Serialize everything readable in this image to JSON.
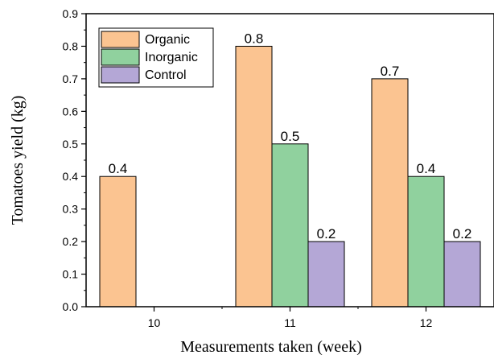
{
  "chart_data": {
    "type": "bar",
    "categories": [
      "10",
      "11",
      "12"
    ],
    "series": [
      {
        "name": "Organic",
        "color": "#fbc491",
        "values": [
          0.4,
          0.8,
          0.7
        ],
        "labels": [
          "0.4",
          "0.8",
          "0.7"
        ]
      },
      {
        "name": "Inorganic",
        "color": "#90d19e",
        "values": [
          null,
          0.5,
          0.4
        ],
        "labels": [
          "",
          "0.5",
          "0.4"
        ]
      },
      {
        "name": "Control",
        "color": "#b4a7d6",
        "values": [
          null,
          0.2,
          0.2
        ],
        "labels": [
          "",
          "0.2",
          "0.2"
        ]
      }
    ],
    "xlabel": "Measurements taken (week)",
    "ylabel": "Tomatoes yield (kg)",
    "ylim": [
      0,
      0.9
    ],
    "yticks": [
      "0.0",
      "0.1",
      "0.2",
      "0.3",
      "0.4",
      "0.5",
      "0.6",
      "0.7",
      "0.8",
      "0.9"
    ],
    "grid": false,
    "legend_position": "top-left"
  }
}
